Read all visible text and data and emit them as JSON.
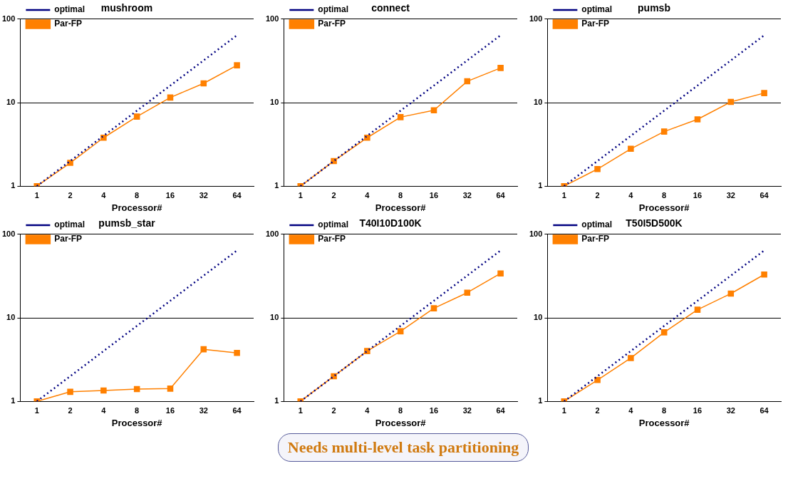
{
  "chart_data": [
    {
      "type": "line",
      "title": "mushroom",
      "xlabel": "Processor#",
      "categories": [
        "1",
        "2",
        "4",
        "8",
        "16",
        "32",
        "64"
      ],
      "log": "y",
      "ylim": [
        1,
        100
      ],
      "yticks": [
        1,
        10,
        100
      ],
      "grid": "y",
      "legend": "top left",
      "series": [
        {
          "name": "optimal",
          "color": "#000080",
          "marker": "none",
          "line_style": "dotted",
          "values": [
            1,
            2,
            4,
            8,
            16,
            32,
            64
          ]
        },
        {
          "name": "Par-FP",
          "color": "#ff8000",
          "marker": "square",
          "line_style": "solid",
          "values": [
            1,
            1.9,
            3.8,
            6.8,
            11.5,
            17,
            28
          ]
        }
      ]
    },
    {
      "type": "line",
      "title": "connect",
      "xlabel": "Processor#",
      "categories": [
        "1",
        "2",
        "4",
        "8",
        "16",
        "32",
        "64"
      ],
      "log": "y",
      "ylim": [
        1,
        100
      ],
      "yticks": [
        1,
        10,
        100
      ],
      "grid": "y",
      "legend": "top left",
      "series": [
        {
          "name": "optimal",
          "color": "#000080",
          "marker": "none",
          "line_style": "dotted",
          "values": [
            1,
            2,
            4,
            8,
            16,
            32,
            64
          ]
        },
        {
          "name": "Par-FP",
          "color": "#ff8000",
          "marker": "square",
          "line_style": "solid",
          "values": [
            1,
            2.0,
            3.8,
            6.7,
            8.1,
            18,
            26
          ]
        }
      ]
    },
    {
      "type": "line",
      "title": "pumsb",
      "xlabel": "Processor#",
      "categories": [
        "1",
        "2",
        "4",
        "8",
        "16",
        "32",
        "64"
      ],
      "log": "y",
      "ylim": [
        1,
        100
      ],
      "yticks": [
        1,
        10,
        100
      ],
      "grid": "y",
      "legend": "top left",
      "series": [
        {
          "name": "optimal",
          "color": "#000080",
          "marker": "none",
          "line_style": "dotted",
          "values": [
            1,
            2,
            4,
            8,
            16,
            32,
            64
          ]
        },
        {
          "name": "Par-FP",
          "color": "#ff8000",
          "marker": "square",
          "line_style": "solid",
          "values": [
            1,
            1.6,
            2.8,
            4.5,
            6.3,
            10.2,
            13
          ]
        }
      ]
    },
    {
      "type": "line",
      "title": "pumsb_star",
      "xlabel": "Processor#",
      "categories": [
        "1",
        "2",
        "4",
        "8",
        "16",
        "32",
        "64"
      ],
      "log": "y",
      "ylim": [
        1,
        100
      ],
      "yticks": [
        1,
        10,
        100
      ],
      "grid": "y",
      "legend": "top left",
      "annotations": [
        "Needs multi-level task partitioning"
      ],
      "series": [
        {
          "name": "optimal",
          "color": "#000080",
          "marker": "none",
          "line_style": "dotted",
          "values": [
            1,
            2,
            4,
            8,
            16,
            32,
            64
          ]
        },
        {
          "name": "Par-FP",
          "color": "#ff8000",
          "marker": "square",
          "line_style": "solid",
          "values": [
            1,
            1.3,
            1.35,
            1.4,
            1.42,
            4.2,
            3.8
          ]
        }
      ]
    },
    {
      "type": "line",
      "title": "T40I10D100K",
      "xlabel": "Processor#",
      "categories": [
        "1",
        "2",
        "4",
        "8",
        "16",
        "32",
        "64"
      ],
      "log": "y",
      "ylim": [
        1,
        100
      ],
      "yticks": [
        1,
        10,
        100
      ],
      "grid": "y",
      "legend": "top left",
      "series": [
        {
          "name": "optimal",
          "color": "#000080",
          "marker": "none",
          "line_style": "dotted",
          "values": [
            1,
            2,
            4,
            8,
            16,
            32,
            64
          ]
        },
        {
          "name": "Par-FP",
          "color": "#ff8000",
          "marker": "square",
          "line_style": "solid",
          "values": [
            1,
            2.0,
            4.0,
            6.9,
            13,
            20,
            34
          ]
        }
      ]
    },
    {
      "type": "line",
      "title": "T50I5D500K",
      "xlabel": "Processor#",
      "categories": [
        "1",
        "2",
        "4",
        "8",
        "16",
        "32",
        "64"
      ],
      "log": "y",
      "ylim": [
        1,
        100
      ],
      "yticks": [
        1,
        10,
        100
      ],
      "grid": "y",
      "legend": "top left",
      "series": [
        {
          "name": "optimal",
          "color": "#000080",
          "marker": "none",
          "line_style": "dotted",
          "values": [
            1,
            2,
            4,
            8,
            16,
            32,
            64
          ]
        },
        {
          "name": "Par-FP",
          "color": "#ff8000",
          "marker": "square",
          "line_style": "solid",
          "values": [
            1,
            1.8,
            3.3,
            6.7,
            12.5,
            19.5,
            33
          ]
        }
      ]
    }
  ]
}
